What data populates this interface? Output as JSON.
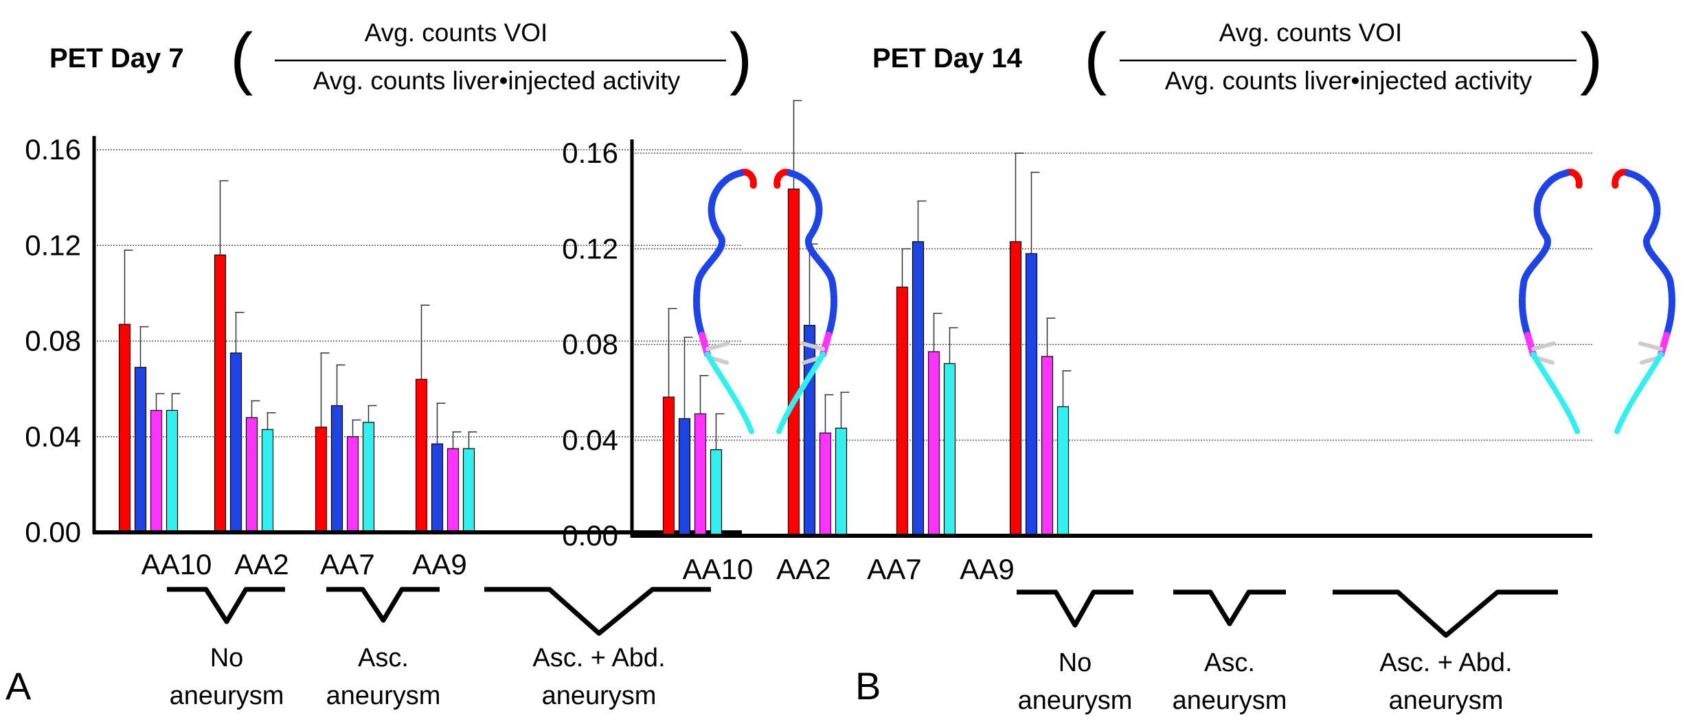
{
  "panels": [
    {
      "id": "A",
      "letter": "A",
      "title_bold": "PET Day 7",
      "title_numerator": "Avg. counts VOI",
      "title_denominator": "Avg. counts liver•injected activity",
      "group_labels": [
        {
          "lines": [
            "No",
            "aneurysm"
          ]
        },
        {
          "lines": [
            "Asc.",
            "aneurysm"
          ]
        },
        {
          "lines": [
            "Asc. + Abd.",
            "aneurysm"
          ]
        }
      ]
    },
    {
      "id": "B",
      "letter": "B",
      "title_bold": "PET Day 14",
      "title_numerator": "Avg. counts VOI",
      "title_denominator": "Avg. counts liver•injected activity",
      "group_labels": [
        {
          "lines": [
            "No",
            "aneurysm"
          ]
        },
        {
          "lines": [
            "Asc.",
            "aneurysm"
          ]
        },
        {
          "lines": [
            "Asc. + Abd.",
            "aneurysm"
          ]
        }
      ]
    }
  ],
  "colors": {
    "red": "#ff0000",
    "blue": "#1e44e6",
    "magenta": "#ff33ff",
    "cyan": "#33f0f0",
    "grid": "#555555",
    "axis": "#000000"
  },
  "chart_data": [
    {
      "type": "bar",
      "title": "PET Day 7",
      "categories": [
        "AA10",
        "AA2",
        "AA7",
        "AA9"
      ],
      "yticks": [
        "0.00",
        "0.04",
        "0.08",
        "0.12",
        "0.16"
      ],
      "ylim": [
        0,
        0.16
      ],
      "grid": true,
      "series": [
        {
          "color": "#ff0000",
          "values": [
            0.087,
            0.116,
            0.044,
            0.064
          ],
          "errors": [
            0.031,
            0.031,
            0.031,
            0.031
          ]
        },
        {
          "color": "#1e44e6",
          "values": [
            0.069,
            0.075,
            0.053,
            0.037
          ],
          "errors": [
            0.017,
            0.017,
            0.017,
            0.017
          ]
        },
        {
          "color": "#ff33ff",
          "values": [
            0.051,
            0.048,
            0.04,
            0.035
          ],
          "errors": [
            0.007,
            0.007,
            0.007,
            0.007
          ]
        },
        {
          "color": "#33f0f0",
          "values": [
            0.051,
            0.043,
            0.046,
            0.035
          ],
          "errors": [
            0.007,
            0.007,
            0.007,
            0.007
          ]
        }
      ]
    },
    {
      "type": "bar",
      "title": "PET Day 14",
      "categories": [
        "AA10",
        "AA2",
        "AA7",
        "AA9"
      ],
      "yticks": [
        "0.00",
        "0.04",
        "0.08",
        "0.12",
        "0.16"
      ],
      "ylim": [
        0,
        0.16
      ],
      "grid": true,
      "series": [
        {
          "color": "#ff0000",
          "values": [
            0.058,
            0.145,
            0.104,
            0.123
          ],
          "errors": [
            0.037,
            0.037,
            0.016,
            0.037
          ]
        },
        {
          "color": "#1e44e6",
          "values": [
            0.049,
            0.088,
            0.123,
            0.118
          ],
          "errors": [
            0.034,
            0.034,
            0.017,
            0.034
          ]
        },
        {
          "color": "#ff33ff",
          "values": [
            0.051,
            0.043,
            0.077,
            0.075
          ],
          "errors": [
            0.016,
            0.016,
            0.016,
            0.016
          ]
        },
        {
          "color": "#33f0f0",
          "values": [
            0.036,
            0.045,
            0.072,
            0.054
          ],
          "errors": [
            0.015,
            0.015,
            0.015,
            0.015
          ]
        }
      ]
    }
  ]
}
